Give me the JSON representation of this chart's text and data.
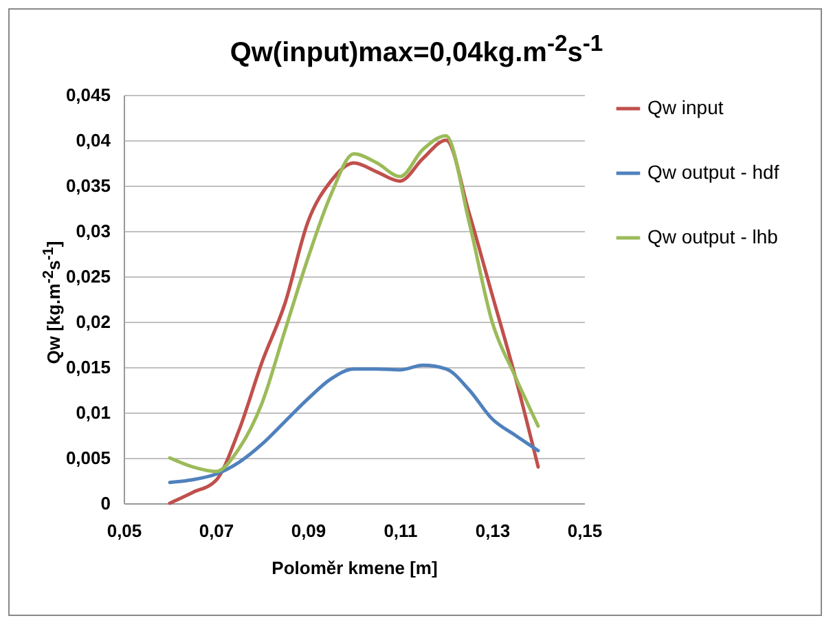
{
  "chart_data": {
    "type": "line",
    "title": "Qw(input)max=0,04kg.m$^{-2}$s$^{-1}$",
    "xlabel": "Poloměr kmene [m]",
    "ylabel": "Qw [kg.m$^{-2}$s$^{-1}$]",
    "x": [
      0.06,
      0.065,
      0.07,
      0.075,
      0.08,
      0.085,
      0.09,
      0.095,
      0.1,
      0.105,
      0.11,
      0.115,
      0.12,
      0.125,
      0.13,
      0.135,
      0.14
    ],
    "series": [
      {
        "name": "Qw input",
        "color": "#c0504d",
        "values": [
          0,
          0.0012,
          0.0025,
          0.008,
          0.0155,
          0.022,
          0.031,
          0.0355,
          0.0375,
          0.0365,
          0.0355,
          0.038,
          0.04,
          0.032,
          0.023,
          0.014,
          0.004
        ]
      },
      {
        "name": "Qw output - hdf",
        "color": "#4f81bd",
        "values": [
          0.0023,
          0.0026,
          0.0032,
          0.0045,
          0.0065,
          0.009,
          0.0115,
          0.0137,
          0.0148,
          0.0148,
          0.0147,
          0.0152,
          0.0148,
          0.0125,
          0.0093,
          0.0075,
          0.0058
        ]
      },
      {
        "name": "Qw output - lhb",
        "color": "#9bbb59",
        "values": [
          0.005,
          0.004,
          0.0035,
          0.006,
          0.011,
          0.019,
          0.027,
          0.034,
          0.0385,
          0.0375,
          0.036,
          0.039,
          0.0405,
          0.031,
          0.02,
          0.014,
          0.0085
        ]
      }
    ],
    "xlim": [
      0.05,
      0.15
    ],
    "xticks": [
      {
        "value": 0.05,
        "label": "0,05"
      },
      {
        "value": 0.07,
        "label": "0,07"
      },
      {
        "value": 0.09,
        "label": "0,09"
      },
      {
        "value": 0.11,
        "label": "0,11"
      },
      {
        "value": 0.13,
        "label": "0,13"
      },
      {
        "value": 0.15,
        "label": "0,15"
      }
    ],
    "ylim": [
      0,
      0.045
    ],
    "yticks": [
      0,
      {
        "value": 0.005,
        "label": "0,005"
      },
      {
        "value": 0.01,
        "label": "0,01"
      },
      {
        "value": 0.015,
        "label": "0,015"
      },
      {
        "value": 0.02,
        "label": "0,02"
      },
      {
        "value": 0.025,
        "label": "0,025"
      },
      {
        "value": 0.03,
        "label": "0,03"
      },
      {
        "value": 0.035,
        "label": "0,035"
      },
      {
        "value": 0.04,
        "label": "0,04"
      },
      {
        "value": 0.045,
        "label": "0,045"
      }
    ],
    "grid": "y",
    "legend": "right",
    "marker": "none",
    "line_style": "solid"
  }
}
